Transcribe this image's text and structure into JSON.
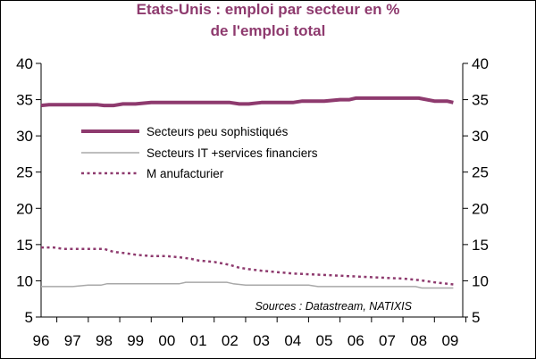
{
  "colors": {
    "peu_sophistiques": "#8e3a6e",
    "it_finance": "#a8a8a8",
    "manufacturier": "#8e3a6e",
    "title": "#8e3a6e"
  },
  "chart_data": {
    "type": "line",
    "title_lines": [
      "Etats-Unis : emploi par secteur en %",
      "de l'emploi total"
    ],
    "xlabel": "",
    "ylabel": "",
    "x_ticks": [
      "96",
      "97",
      "98",
      "99",
      "00",
      "01",
      "02",
      "03",
      "04",
      "05",
      "06",
      "07",
      "08",
      "09"
    ],
    "x_range": [
      1996,
      2009.4
    ],
    "ylim": [
      5,
      40
    ],
    "y_ticks": [
      "5",
      "10",
      "15",
      "20",
      "25",
      "30",
      "35",
      "40"
    ],
    "y2lim": [
      5,
      40
    ],
    "y2_ticks": [
      "5",
      "10",
      "15",
      "20",
      "25",
      "30",
      "35",
      "40"
    ],
    "grid": false,
    "legend_position": "upper-left",
    "series": [
      {
        "name": "Secteurs peu sophistiqués",
        "style": "solid-thick",
        "x": [
          1996.0,
          1996.25,
          1996.5,
          1997.0,
          1997.5,
          1997.8,
          1998.0,
          1998.3,
          1998.6,
          1999.0,
          1999.5,
          2000.0,
          2000.5,
          2001.0,
          2001.5,
          2001.8,
          2002.0,
          2002.3,
          2002.6,
          2003.0,
          2003.5,
          2004.0,
          2004.3,
          2004.6,
          2005.0,
          2005.5,
          2005.8,
          2006.0,
          2006.5,
          2007.0,
          2007.5,
          2008.0,
          2008.5,
          2008.9,
          2009.1
        ],
        "values": [
          34.2,
          34.3,
          34.3,
          34.3,
          34.3,
          34.3,
          34.2,
          34.2,
          34.4,
          34.4,
          34.6,
          34.6,
          34.6,
          34.6,
          34.6,
          34.6,
          34.6,
          34.4,
          34.4,
          34.6,
          34.6,
          34.6,
          34.8,
          34.8,
          34.8,
          35.0,
          35.0,
          35.2,
          35.2,
          35.2,
          35.2,
          35.2,
          34.8,
          34.8,
          34.6
        ]
      },
      {
        "name": "Secteurs IT +services financiers",
        "style": "solid-thin",
        "x": [
          1996.0,
          1996.5,
          1996.8,
          1997.0,
          1997.5,
          1997.9,
          1998.1,
          1998.5,
          1999.0,
          1999.5,
          2000.0,
          2000.4,
          2000.6,
          2001.0,
          2001.5,
          2001.9,
          2002.1,
          2002.5,
          2003.0,
          2003.5,
          2004.0,
          2004.5,
          2004.8,
          2005.0,
          2005.5,
          2006.0,
          2006.5,
          2007.0,
          2007.5,
          2007.9,
          2008.1,
          2008.5,
          2009.1
        ],
        "values": [
          9.2,
          9.2,
          9.2,
          9.2,
          9.4,
          9.4,
          9.6,
          9.6,
          9.6,
          9.6,
          9.6,
          9.6,
          9.8,
          9.8,
          9.8,
          9.8,
          9.6,
          9.4,
          9.4,
          9.4,
          9.4,
          9.4,
          9.2,
          9.2,
          9.2,
          9.2,
          9.2,
          9.2,
          9.2,
          9.2,
          9.0,
          9.0,
          9.0
        ]
      },
      {
        "name": "M anufacturier",
        "style": "dotted",
        "x": [
          1996.0,
          1996.4,
          1996.7,
          1997.0,
          1997.5,
          1998.0,
          1998.3,
          1998.7,
          1999.0,
          1999.5,
          2000.0,
          2000.5,
          2000.8,
          2001.0,
          2001.5,
          2002.0,
          2002.3,
          2002.6,
          2003.0,
          2003.5,
          2004.0,
          2004.5,
          2005.0,
          2005.5,
          2006.0,
          2006.5,
          2007.0,
          2007.5,
          2008.0,
          2008.5,
          2009.1
        ],
        "values": [
          14.6,
          14.6,
          14.4,
          14.4,
          14.4,
          14.4,
          14.0,
          13.8,
          13.6,
          13.4,
          13.4,
          13.2,
          13.0,
          12.8,
          12.6,
          12.2,
          11.8,
          11.6,
          11.4,
          11.2,
          11.0,
          10.9,
          10.8,
          10.7,
          10.6,
          10.5,
          10.4,
          10.3,
          10.1,
          9.8,
          9.5
        ]
      }
    ],
    "annotation": "Sources : Datastream, NATIXIS"
  }
}
